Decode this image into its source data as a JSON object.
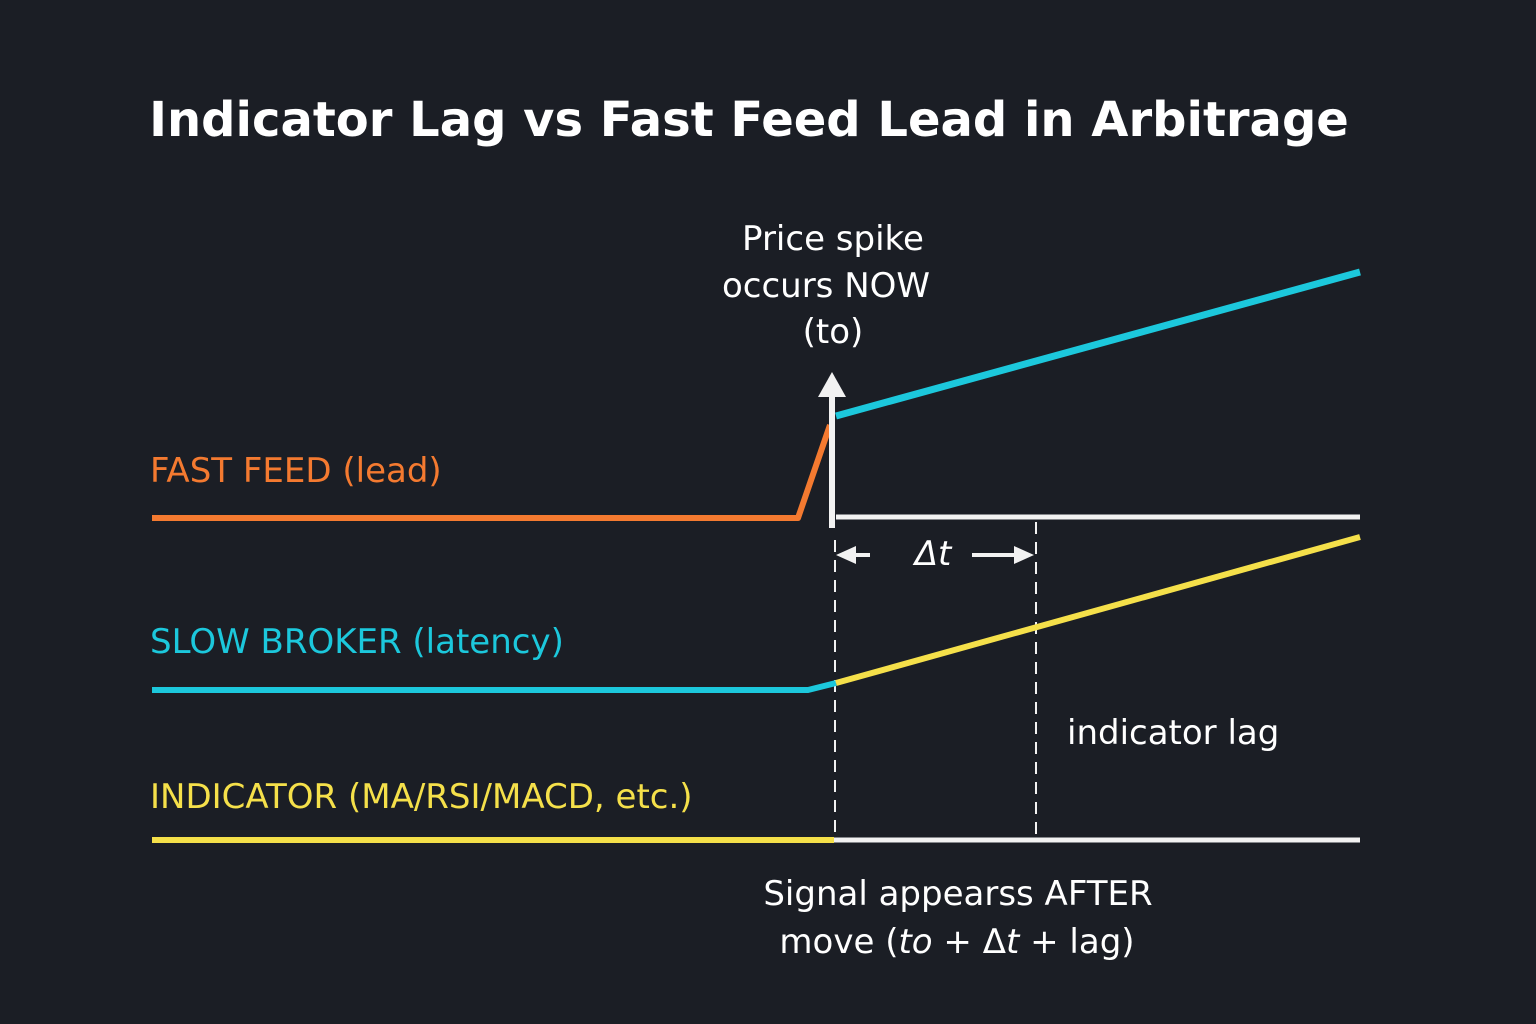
{
  "title": "Indicator Lag vs Fast Feed Lead in Arbitrage",
  "colors": {
    "background": "#1b1e25",
    "fast_feed": "#f47a30",
    "slow_broker": "#1cc8dc",
    "indicator": "#f5e04a",
    "neutral": "#f2f2f2"
  },
  "rows": [
    {
      "label": "FAST FEED (lead)"
    },
    {
      "label": "SLOW BROKER (latency)"
    },
    {
      "label": "INDICATOR (MA/RSI/MACD, etc.)"
    }
  ],
  "spike_annotation": [
    "Price spike",
    "occurs NOW",
    "(to)"
  ],
  "delta_label": "Δt",
  "lag_label": "indicator lag",
  "signal_annotation": {
    "line1": "Signal appearss AFTER",
    "line2_prefix": "move (",
    "line2_italic1": "to",
    "line2_mid": " + Δ",
    "line2_italic2": "t",
    "line2_suffix": " + lag)"
  }
}
